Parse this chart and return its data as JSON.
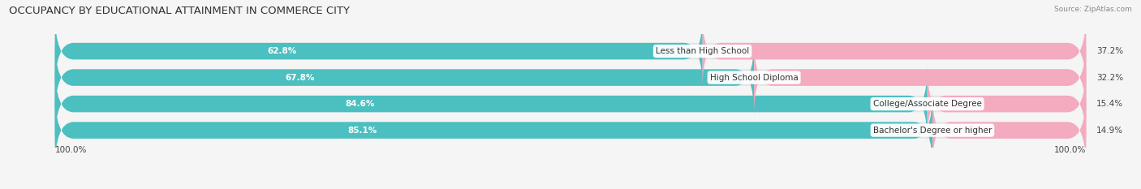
{
  "title": "OCCUPANCY BY EDUCATIONAL ATTAINMENT IN COMMERCE CITY",
  "source": "Source: ZipAtlas.com",
  "categories": [
    "Less than High School",
    "High School Diploma",
    "College/Associate Degree",
    "Bachelor's Degree or higher"
  ],
  "owner_pct": [
    62.8,
    67.8,
    84.6,
    85.1
  ],
  "renter_pct": [
    37.2,
    32.2,
    15.4,
    14.9
  ],
  "owner_color": "#4CBFC0",
  "renter_color": "#F07FA0",
  "renter_color_light": "#F4AABF",
  "bg_color": "#f5f5f5",
  "row_bg_color": "#e4e4e4",
  "title_fontsize": 9.5,
  "label_fontsize": 7.5,
  "pct_fontsize": 7.5,
  "source_fontsize": 6.5,
  "tick_fontsize": 7.5,
  "bar_height": 0.62,
  "total_width": 100.0,
  "xlim_left": -5,
  "xlim_right": 105
}
